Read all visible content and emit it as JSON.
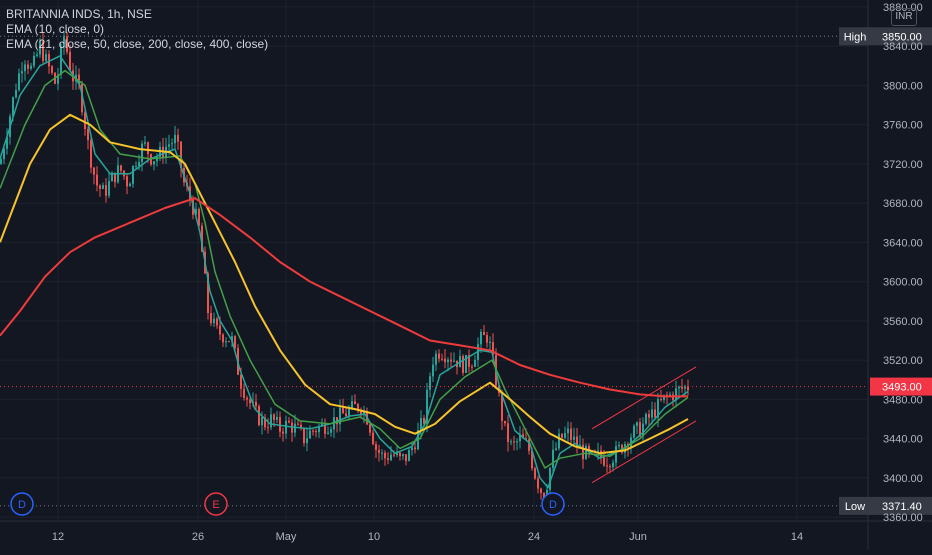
{
  "legend": {
    "symbol": "BRITANNIA INDS, 1h, NSE",
    "ema1": "EMA (10, close, 0)",
    "ema2": "EMA (21, close, 50, close, 200, close, 400, close)"
  },
  "currency": "INR",
  "colors": {
    "background": "#131722",
    "up": "#26a69a",
    "down": "#ef5350",
    "ema10": "#26a69a",
    "ema21_green": "#43a047",
    "ema50": "#f7c32b",
    "ema200": "#ef3b3b",
    "channel": "#f23645",
    "high_label_bg": "#363a45",
    "price_label_bg": "#f23645"
  },
  "chart_data": {
    "type": "candlestick",
    "y_axis": {
      "ticks": [
        3880,
        3840,
        3800,
        3760,
        3720,
        3680,
        3640,
        3600,
        3560,
        3520,
        3480,
        3440,
        3400,
        3360
      ],
      "tick_labels": [
        "3880.00",
        "3840.00",
        "3800.00",
        "3760.00",
        "3720.00",
        "3680.00",
        "3640.00",
        "3600.00",
        "3560.00",
        "3520.00",
        "3480.00",
        "3440.00",
        "3400.00",
        "3360.00"
      ],
      "ylim": [
        3356,
        3887
      ]
    },
    "x_axis": {
      "tick_labels": [
        "12",
        "26",
        "May",
        "10",
        "24",
        "Jun",
        "14"
      ]
    },
    "markers": {
      "high": {
        "label": "High",
        "value": "3850.00"
      },
      "low": {
        "label": "Low",
        "value": "3371.40"
      },
      "last_price": {
        "value": "3493.00"
      }
    },
    "event_labels": [
      "D",
      "E",
      "D"
    ],
    "close_path": [
      [
        0,
        3720
      ],
      [
        8,
        3760
      ],
      [
        16,
        3800
      ],
      [
        24,
        3830
      ],
      [
        32,
        3815
      ],
      [
        40,
        3840
      ],
      [
        48,
        3820
      ],
      [
        56,
        3800
      ],
      [
        64,
        3850
      ],
      [
        72,
        3810
      ],
      [
        80,
        3795
      ],
      [
        88,
        3740
      ],
      [
        96,
        3700
      ],
      [
        104,
        3690
      ],
      [
        112,
        3705
      ],
      [
        120,
        3715
      ],
      [
        128,
        3700
      ],
      [
        136,
        3725
      ],
      [
        144,
        3740
      ],
      [
        152,
        3725
      ],
      [
        160,
        3730
      ],
      [
        168,
        3740
      ],
      [
        176,
        3745
      ],
      [
        184,
        3700
      ],
      [
        192,
        3680
      ],
      [
        200,
        3650
      ],
      [
        208,
        3570
      ],
      [
        216,
        3550
      ],
      [
        224,
        3545
      ],
      [
        232,
        3540
      ],
      [
        240,
        3500
      ],
      [
        248,
        3480
      ],
      [
        256,
        3465
      ],
      [
        264,
        3455
      ],
      [
        272,
        3460
      ],
      [
        280,
        3450
      ],
      [
        288,
        3455
      ],
      [
        296,
        3450
      ],
      [
        304,
        3440
      ],
      [
        312,
        3448
      ],
      [
        320,
        3452
      ],
      [
        328,
        3455
      ],
      [
        336,
        3460
      ],
      [
        344,
        3465
      ],
      [
        352,
        3470
      ],
      [
        360,
        3475
      ],
      [
        368,
        3460
      ],
      [
        376,
        3430
      ],
      [
        384,
        3420
      ],
      [
        392,
        3425
      ],
      [
        400,
        3418
      ],
      [
        408,
        3422
      ],
      [
        416,
        3440
      ],
      [
        424,
        3460
      ],
      [
        432,
        3520
      ],
      [
        440,
        3530
      ],
      [
        448,
        3525
      ],
      [
        456,
        3520
      ],
      [
        464,
        3515
      ],
      [
        472,
        3520
      ],
      [
        480,
        3540
      ],
      [
        488,
        3545
      ],
      [
        496,
        3500
      ],
      [
        504,
        3450
      ],
      [
        512,
        3430
      ],
      [
        520,
        3440
      ],
      [
        528,
        3432
      ],
      [
        536,
        3400
      ],
      [
        544,
        3380
      ],
      [
        552,
        3420
      ],
      [
        560,
        3440
      ],
      [
        568,
        3445
      ],
      [
        576,
        3435
      ],
      [
        584,
        3425
      ],
      [
        592,
        3420
      ],
      [
        600,
        3422
      ],
      [
        608,
        3418
      ],
      [
        616,
        3425
      ],
      [
        624,
        3435
      ],
      [
        632,
        3445
      ],
      [
        640,
        3450
      ],
      [
        648,
        3460
      ],
      [
        656,
        3470
      ],
      [
        664,
        3480
      ],
      [
        672,
        3485
      ],
      [
        680,
        3490
      ],
      [
        688,
        3493
      ]
    ],
    "series": [
      {
        "name": "EMA (10)",
        "values": [
          [
            0,
            3725
          ],
          [
            20,
            3790
          ],
          [
            40,
            3820
          ],
          [
            60,
            3830
          ],
          [
            80,
            3800
          ],
          [
            95,
            3730
          ],
          [
            110,
            3710
          ],
          [
            130,
            3710
          ],
          [
            150,
            3725
          ],
          [
            175,
            3735
          ],
          [
            190,
            3690
          ],
          [
            200,
            3650
          ],
          [
            210,
            3590
          ],
          [
            220,
            3560
          ],
          [
            232,
            3540
          ],
          [
            240,
            3510
          ],
          [
            255,
            3470
          ],
          [
            270,
            3455
          ],
          [
            290,
            3452
          ],
          [
            310,
            3450
          ],
          [
            330,
            3455
          ],
          [
            350,
            3463
          ],
          [
            365,
            3465
          ],
          [
            380,
            3440
          ],
          [
            395,
            3425
          ],
          [
            412,
            3432
          ],
          [
            425,
            3455
          ],
          [
            440,
            3505
          ],
          [
            460,
            3518
          ],
          [
            480,
            3530
          ],
          [
            492,
            3528
          ],
          [
            500,
            3490
          ],
          [
            515,
            3448
          ],
          [
            530,
            3435
          ],
          [
            540,
            3400
          ],
          [
            548,
            3390
          ],
          [
            560,
            3425
          ],
          [
            575,
            3435
          ],
          [
            600,
            3420
          ],
          [
            625,
            3430
          ],
          [
            645,
            3448
          ],
          [
            665,
            3472
          ],
          [
            688,
            3488
          ]
        ]
      },
      {
        "name": "EMA (21)",
        "values": [
          [
            0,
            3695
          ],
          [
            25,
            3760
          ],
          [
            45,
            3800
          ],
          [
            65,
            3815
          ],
          [
            85,
            3800
          ],
          [
            100,
            3755
          ],
          [
            120,
            3730
          ],
          [
            150,
            3725
          ],
          [
            180,
            3728
          ],
          [
            195,
            3700
          ],
          [
            205,
            3660
          ],
          [
            215,
            3610
          ],
          [
            230,
            3565
          ],
          [
            250,
            3520
          ],
          [
            275,
            3475
          ],
          [
            300,
            3458
          ],
          [
            330,
            3455
          ],
          [
            360,
            3462
          ],
          [
            380,
            3450
          ],
          [
            400,
            3430
          ],
          [
            420,
            3440
          ],
          [
            440,
            3480
          ],
          [
            465,
            3503
          ],
          [
            492,
            3520
          ],
          [
            505,
            3490
          ],
          [
            525,
            3450
          ],
          [
            545,
            3410
          ],
          [
            560,
            3420
          ],
          [
            585,
            3425
          ],
          [
            610,
            3422
          ],
          [
            640,
            3440
          ],
          [
            665,
            3465
          ],
          [
            688,
            3482
          ]
        ]
      },
      {
        "name": "EMA (50)",
        "values": [
          [
            0,
            3640
          ],
          [
            15,
            3680
          ],
          [
            30,
            3720
          ],
          [
            50,
            3755
          ],
          [
            70,
            3770
          ],
          [
            90,
            3760
          ],
          [
            110,
            3742
          ],
          [
            140,
            3735
          ],
          [
            170,
            3732
          ],
          [
            185,
            3720
          ],
          [
            200,
            3690
          ],
          [
            215,
            3660
          ],
          [
            235,
            3620
          ],
          [
            255,
            3575
          ],
          [
            280,
            3530
          ],
          [
            305,
            3495
          ],
          [
            330,
            3475
          ],
          [
            355,
            3470
          ],
          [
            375,
            3465
          ],
          [
            395,
            3452
          ],
          [
            415,
            3445
          ],
          [
            435,
            3455
          ],
          [
            460,
            3478
          ],
          [
            490,
            3497
          ],
          [
            510,
            3480
          ],
          [
            530,
            3462
          ],
          [
            550,
            3445
          ],
          [
            575,
            3432
          ],
          [
            600,
            3425
          ],
          [
            625,
            3428
          ],
          [
            650,
            3440
          ],
          [
            670,
            3450
          ],
          [
            688,
            3460
          ]
        ]
      },
      {
        "name": "EMA (200)",
        "values": [
          [
            0,
            3545
          ],
          [
            20,
            3570
          ],
          [
            45,
            3605
          ],
          [
            70,
            3630
          ],
          [
            95,
            3645
          ],
          [
            130,
            3660
          ],
          [
            165,
            3675
          ],
          [
            195,
            3685
          ],
          [
            220,
            3668
          ],
          [
            250,
            3645
          ],
          [
            280,
            3620
          ],
          [
            310,
            3600
          ],
          [
            340,
            3585
          ],
          [
            370,
            3570
          ],
          [
            400,
            3555
          ],
          [
            430,
            3540
          ],
          [
            460,
            3535
          ],
          [
            490,
            3530
          ],
          [
            520,
            3515
          ],
          [
            550,
            3505
          ],
          [
            580,
            3497
          ],
          [
            610,
            3490
          ],
          [
            640,
            3485
          ],
          [
            665,
            3483
          ],
          [
            688,
            3483
          ]
        ]
      }
    ],
    "channel": {
      "upper": [
        [
          592,
          3450
        ],
        [
          696,
          3513
        ]
      ],
      "lower": [
        [
          592,
          3395
        ],
        [
          696,
          3458
        ]
      ]
    }
  }
}
